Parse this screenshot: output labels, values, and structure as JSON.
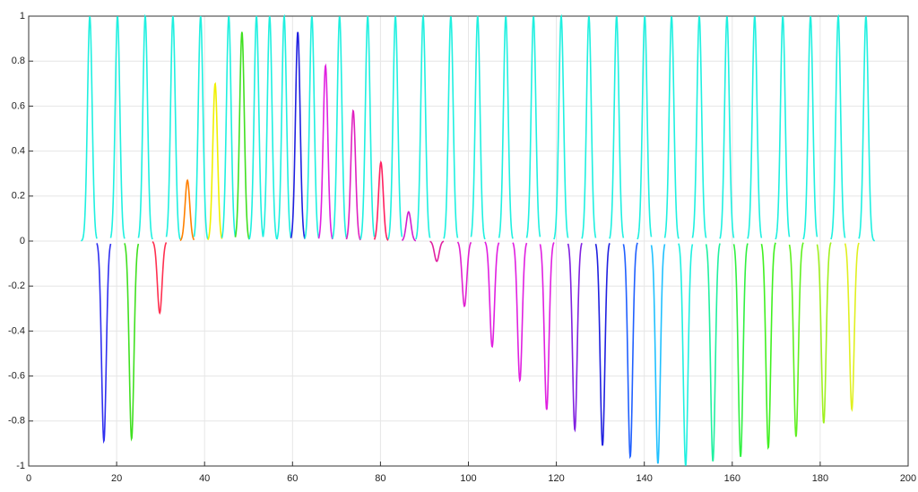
{
  "chart_data": {
    "type": "line",
    "x": [
      13.9,
      17.1,
      20.2,
      23.4,
      26.5,
      29.8,
      32.8,
      36.1,
      39.1,
      42.4,
      45.5,
      48.5,
      51.8,
      54.8,
      58.1,
      61.2,
      64.4,
      67.5,
      70.7,
      73.8,
      77.1,
      80.1,
      83.4,
      86.4,
      89.7,
      92.8,
      96.0,
      99.1,
      102.1,
      105.4,
      108.5,
      111.7,
      114.8,
      117.8,
      121.1,
      124.2,
      127.4,
      130.5,
      133.7,
      136.8,
      140.1,
      143.1,
      146.2,
      149.4,
      152.5,
      155.6,
      158.8,
      161.9,
      165.1,
      168.2,
      171.5,
      174.5,
      177.8,
      180.8,
      184.1,
      187.2,
      190.4
    ],
    "values": [
      1,
      -0.89,
      1,
      -0.88,
      1,
      -0.32,
      1,
      0.27,
      1,
      0.7,
      1,
      0.93,
      1,
      1,
      1,
      0.93,
      1,
      0.78,
      1,
      0.58,
      1,
      0.35,
      1,
      0.13,
      1,
      -0.09,
      1,
      -0.29,
      1,
      -0.47,
      1,
      -0.62,
      1,
      -0.75,
      1,
      -0.84,
      1,
      -0.91,
      1,
      -0.96,
      1,
      -0.99,
      1,
      -1,
      1,
      -0.98,
      1,
      -0.96,
      1,
      -0.92,
      1,
      -0.87,
      1,
      -0.81,
      1,
      -0.75,
      1
    ],
    "colors": [
      "#1ff0e0",
      "#3030f0",
      "#1ff0e0",
      "#40e020",
      "#1ff0e0",
      "#ff3050",
      "#1ff0e0",
      "#ff8000",
      "#1ff0e0",
      "#f0f000",
      "#1ff0e0",
      "#40e020",
      "#1ff0e0",
      "#1ff0e0",
      "#1ff0e0",
      "#2020e0",
      "#1ff0e0",
      "#e020e0",
      "#1ff0e0",
      "#e020c0",
      "#1ff0e0",
      "#ff2060",
      "#1ff0e0",
      "#d020d0",
      "#1ff0e0",
      "#e020a0",
      "#1ff0e0",
      "#e020d0",
      "#1ff0e0",
      "#e020e0",
      "#1ff0e0",
      "#e020e0",
      "#1ff0e0",
      "#e020e0",
      "#1ff0e0",
      "#8020e0",
      "#1ff0e0",
      "#2020e0",
      "#1ff0e0",
      "#2060ff",
      "#1ff0e0",
      "#20c0ff",
      "#1ff0e0",
      "#20f0e0",
      "#1ff0e0",
      "#20f0a0",
      "#1ff0e0",
      "#30f040",
      "#1ff0e0",
      "#40f020",
      "#1ff0e0",
      "#60f020",
      "#1ff0e0",
      "#a0f020",
      "#1ff0e0",
      "#e0f020",
      "#1ff0e0"
    ],
    "xlim": [
      0,
      200
    ],
    "xticks": [
      0,
      20,
      40,
      60,
      80,
      100,
      120,
      140,
      160,
      180,
      200
    ],
    "ylim": [
      -1,
      1
    ],
    "yticks": [
      -1,
      -0.8,
      -0.6,
      -0.4,
      -0.2,
      0,
      0.2,
      0.4,
      0.6,
      0.8,
      1
    ],
    "grid": true
  }
}
